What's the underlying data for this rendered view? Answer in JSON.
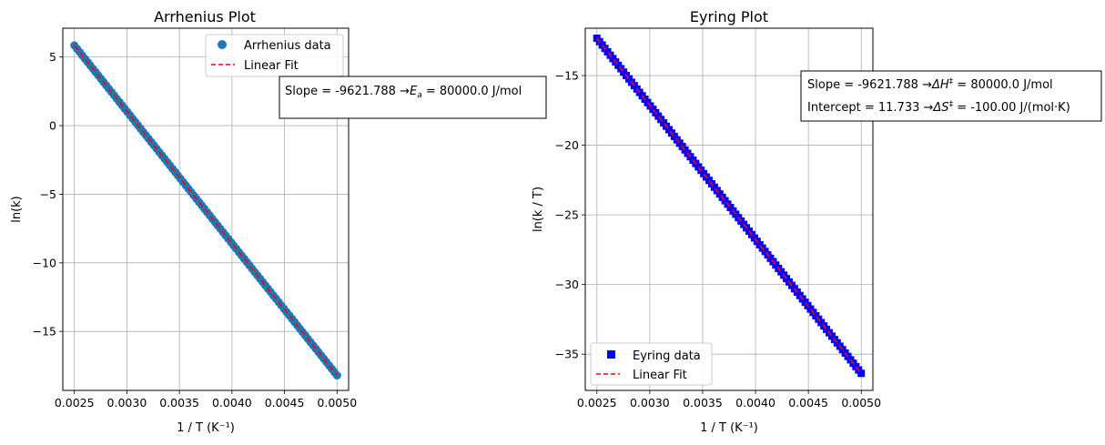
{
  "chart_data": [
    {
      "type": "scatter",
      "title": "Arrhenius Plot",
      "xlabel": "1 / T (K⁻¹)",
      "ylabel": "ln(k)",
      "xlim": [
        0.00239,
        0.00511
      ],
      "ylim": [
        -19.3,
        7.1
      ],
      "xticks": [
        0.0025,
        0.003,
        0.0035,
        0.004,
        0.0045,
        0.005
      ],
      "xtick_labels": [
        "0.0025",
        "0.0030",
        "0.0035",
        "0.0040",
        "0.0045",
        "0.0050"
      ],
      "yticks": [
        5,
        0,
        -5,
        -10,
        -15
      ],
      "ytick_labels": [
        "5",
        "0",
        "−5",
        "−10",
        "−15"
      ],
      "grid": true,
      "legend_position": "top-right",
      "series": [
        {
          "name": "Arrhenius data",
          "kind": "scatter",
          "marker": "circle",
          "color": "#1f77b4",
          "x_start": 0.0025,
          "x_end": 0.005,
          "n_points": 100,
          "slope": -9621.788,
          "intercept": 29.9
        },
        {
          "name": "Linear Fit",
          "kind": "line",
          "style": "dashed",
          "color": "#ff0000",
          "x_start": 0.0025,
          "x_end": 0.005,
          "slope": -9621.788,
          "intercept": 29.9
        }
      ],
      "annotation": {
        "line1_pre": "Slope = -9621.788 →",
        "line1_sym": "E",
        "line1_sub": "a",
        "line1_post": " = 80000.0 J/mol"
      }
    },
    {
      "type": "scatter",
      "title": "Eyring Plot",
      "xlabel": "1 / T (K⁻¹)",
      "ylabel": "ln(k / T)",
      "xlim": [
        0.00239,
        0.00511
      ],
      "ylim": [
        -37.6,
        -11.6
      ],
      "xticks": [
        0.0025,
        0.003,
        0.0035,
        0.004,
        0.0045,
        0.005
      ],
      "xtick_labels": [
        "0.0025",
        "0.0030",
        "0.0035",
        "0.0040",
        "0.0045",
        "0.0050"
      ],
      "yticks": [
        -15,
        -20,
        -25,
        -30,
        -35
      ],
      "ytick_labels": [
        "−15",
        "−20",
        "−25",
        "−30",
        "−35"
      ],
      "grid": true,
      "legend_position": "bottom-left",
      "series": [
        {
          "name": "Eyring data",
          "kind": "scatter",
          "marker": "square",
          "color": "#0000ff",
          "x_start": 0.0025,
          "x_end": 0.005,
          "n_points": 100,
          "slope": -9621.788,
          "intercept": 11.733
        },
        {
          "name": "Linear Fit",
          "kind": "line",
          "style": "dashed",
          "color": "#ff0000",
          "x_start": 0.0025,
          "x_end": 0.005,
          "slope": -9621.788,
          "intercept": 11.733
        }
      ],
      "annotation": {
        "line1_pre": "Slope = -9621.788 →",
        "line1_sym": "ΔH",
        "line1_sup": "‡",
        "line1_post": " = 80000.0 J/mol",
        "line2_pre": "Intercept = 11.733 →",
        "line2_sym": "ΔS",
        "line2_sup": "‡",
        "line2_post": " = -100.00 J/(mol·K)"
      }
    }
  ]
}
